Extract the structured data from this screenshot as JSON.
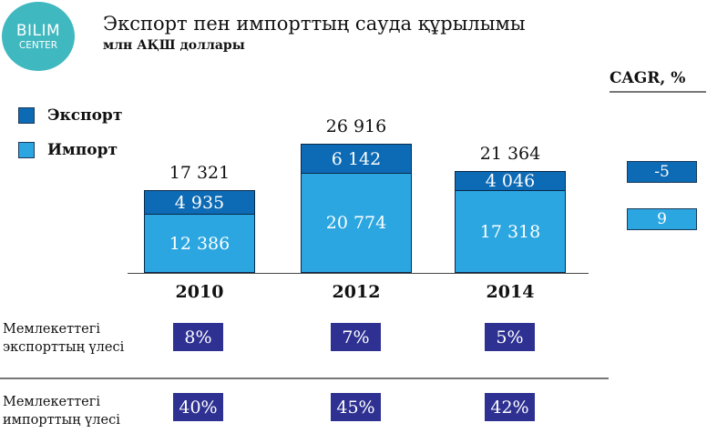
{
  "logo": {
    "line1": "BILIM",
    "line2": "CENTER"
  },
  "title": "Экспорт пен  импорттың сауда құрылымы",
  "subtitle": "млн АҚШ доллары",
  "cagr_title": "CAGR,  %",
  "colors": {
    "export": "#0d6ab4",
    "import": "#2ba6e0",
    "share_box": "#2e3192"
  },
  "legend": [
    {
      "label": "Экспорт",
      "color": "#0d6ab4"
    },
    {
      "label": "Импорт",
      "color": "#2ba6e0"
    }
  ],
  "chart_data": {
    "type": "bar",
    "stacked": true,
    "categories": [
      "2010",
      "2012",
      "2014"
    ],
    "series": [
      {
        "name": "Импорт",
        "values": [
          12386,
          20774,
          17318
        ],
        "labels": [
          "12 386",
          "20 774",
          "17 318"
        ]
      },
      {
        "name": "Экспорт",
        "values": [
          4935,
          6142,
          4046
        ],
        "labels": [
          "4 935",
          "6 142",
          "4 046"
        ]
      }
    ],
    "totals": [
      17321,
      26916,
      21364
    ],
    "total_labels": [
      "17 321",
      "26 916",
      "21 364"
    ],
    "cagr": [
      {
        "series": "Экспорт",
        "value": "-5"
      },
      {
        "series": "Импорт",
        "value": "9"
      }
    ],
    "grid": false,
    "legend_position": "top-left"
  },
  "shares": [
    {
      "label_line1": "Мемлекеттегі",
      "label_line2": "экспорттың үлесі",
      "values": [
        "8%",
        "7%",
        "5%"
      ]
    },
    {
      "label_line1": "Мемлекеттегі",
      "label_line2": "импорттың үлесі",
      "values": [
        "40%",
        "45%",
        "42%"
      ]
    }
  ]
}
